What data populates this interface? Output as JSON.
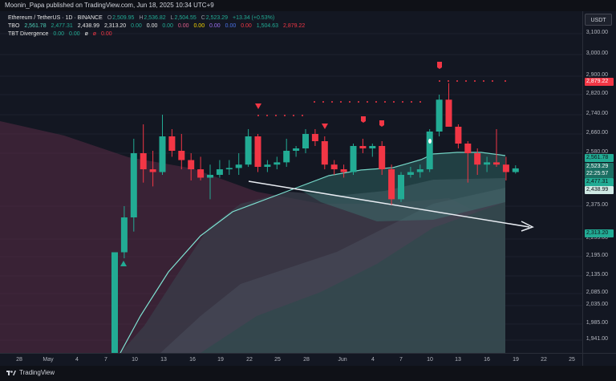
{
  "topbar": {
    "text": "Moonin_Papa published on TradingView.com, Jun 18, 2025 10:34 UTC+9"
  },
  "legend": {
    "symbol_line": {
      "symbol": "Ethereum / TetherUS · 1D · BINANCE",
      "o_label": "O",
      "o": "2,509.95",
      "h_label": "H",
      "h": "2,536.82",
      "l_label": "L",
      "l": "2,504.55",
      "c_label": "C",
      "c": "2,523.29",
      "change": "+13.34 (+0.53%)"
    },
    "tbo_line": {
      "name": "TBO",
      "values": [
        "2,561.78",
        "2,477.31",
        "2,438.99",
        "2,313.20",
        "0.00",
        "0.00",
        "0.00",
        "0.00",
        "0.00",
        "0.00",
        "0.00",
        "0.00",
        "1,504.63",
        "2,879.22"
      ]
    },
    "tbt_line": {
      "name": "TBT Divergence",
      "values": [
        "0.00",
        "0.00",
        "ø",
        "ø",
        "0.00"
      ]
    }
  },
  "currency_button": "USDT",
  "y_axis": {
    "ticks": [
      "3,100.00",
      "3,000.00",
      "2,900.00",
      "2,820.00",
      "2,740.00",
      "2,660.00",
      "2,580.00",
      "2,375.00",
      "2,255.00",
      "2,195.00",
      "2,135.00",
      "2,085.00",
      "2,035.00",
      "1,985.00",
      "1,941.00"
    ]
  },
  "price_tags": [
    {
      "value": "2,879.22",
      "color": "#f23645"
    },
    {
      "value": "2,561.78",
      "color": "#22ab94"
    },
    {
      "value": "2,523.29",
      "color": "#22ab94"
    },
    {
      "value": "22:25:57",
      "color": "#22ab94"
    },
    {
      "value": "2,477.31",
      "color": "#22ab94"
    },
    {
      "value": "2,438.99",
      "color": "#22ab94"
    },
    {
      "value": "2,313.20",
      "color": "#22ab94"
    }
  ],
  "x_axis": {
    "ticks": [
      "28",
      "May",
      "4",
      "7",
      "10",
      "13",
      "16",
      "19",
      "22",
      "25",
      "28",
      "Jun",
      "4",
      "7",
      "10",
      "13",
      "16",
      "19",
      "22",
      "25"
    ]
  },
  "footer": {
    "brand": "TradingView"
  },
  "colors": {
    "up": "#22ab94",
    "down": "#f23645",
    "bg": "#131722",
    "line": "#7fe3d3"
  },
  "chart_data": {
    "type": "candlestick",
    "symbol": "Ethereum / TetherUS",
    "interval": "1D",
    "exchange": "BINANCE",
    "candles": [
      {
        "o": 1780,
        "h": 2210,
        "l": 1780,
        "c": 2210
      },
      {
        "o": 2210,
        "h": 2375,
        "l": 2190,
        "c": 2345
      },
      {
        "o": 2345,
        "h": 2640,
        "l": 2300,
        "c": 2580
      },
      {
        "o": 2580,
        "h": 2700,
        "l": 2470,
        "c": 2520
      },
      {
        "o": 2520,
        "h": 2590,
        "l": 2450,
        "c": 2510
      },
      {
        "o": 2510,
        "h": 2740,
        "l": 2500,
        "c": 2650
      },
      {
        "o": 2650,
        "h": 2680,
        "l": 2570,
        "c": 2590
      },
      {
        "o": 2590,
        "h": 2660,
        "l": 2520,
        "c": 2560
      },
      {
        "o": 2560,
        "h": 2580,
        "l": 2480,
        "c": 2520
      },
      {
        "o": 2520,
        "h": 2570,
        "l": 2480,
        "c": 2490
      },
      {
        "o": 2490,
        "h": 2540,
        "l": 2400,
        "c": 2500
      },
      {
        "o": 2500,
        "h": 2560,
        "l": 2490,
        "c": 2520
      },
      {
        "o": 2520,
        "h": 2560,
        "l": 2500,
        "c": 2525
      },
      {
        "o": 2525,
        "h": 2580,
        "l": 2500,
        "c": 2540
      },
      {
        "o": 2540,
        "h": 2680,
        "l": 2530,
        "c": 2650
      },
      {
        "o": 2650,
        "h": 2660,
        "l": 2510,
        "c": 2530
      },
      {
        "o": 2530,
        "h": 2560,
        "l": 2510,
        "c": 2540
      },
      {
        "o": 2540,
        "h": 2570,
        "l": 2520,
        "c": 2550
      },
      {
        "o": 2550,
        "h": 2640,
        "l": 2530,
        "c": 2590
      },
      {
        "o": 2590,
        "h": 2610,
        "l": 2570,
        "c": 2600
      },
      {
        "o": 2600,
        "h": 2680,
        "l": 2580,
        "c": 2660
      },
      {
        "o": 2660,
        "h": 2680,
        "l": 2610,
        "c": 2630
      },
      {
        "o": 2630,
        "h": 2650,
        "l": 2520,
        "c": 2540
      },
      {
        "o": 2540,
        "h": 2560,
        "l": 2500,
        "c": 2520
      },
      {
        "o": 2520,
        "h": 2540,
        "l": 2490,
        "c": 2510
      },
      {
        "o": 2510,
        "h": 2620,
        "l": 2500,
        "c": 2610
      },
      {
        "o": 2610,
        "h": 2640,
        "l": 2580,
        "c": 2600
      },
      {
        "o": 2600,
        "h": 2620,
        "l": 2570,
        "c": 2610
      },
      {
        "o": 2610,
        "h": 2630,
        "l": 2500,
        "c": 2520
      },
      {
        "o": 2520,
        "h": 2540,
        "l": 2380,
        "c": 2400
      },
      {
        "o": 2400,
        "h": 2510,
        "l": 2390,
        "c": 2500
      },
      {
        "o": 2500,
        "h": 2530,
        "l": 2490,
        "c": 2510
      },
      {
        "o": 2510,
        "h": 2540,
        "l": 2490,
        "c": 2520
      },
      {
        "o": 2520,
        "h": 2680,
        "l": 2510,
        "c": 2670
      },
      {
        "o": 2670,
        "h": 2820,
        "l": 2650,
        "c": 2800
      },
      {
        "o": 2800,
        "h": 2870,
        "l": 2690,
        "c": 2690
      },
      {
        "o": 2690,
        "h": 2700,
        "l": 2600,
        "c": 2620
      },
      {
        "o": 2620,
        "h": 2630,
        "l": 2470,
        "c": 2580
      },
      {
        "o": 2580,
        "h": 2600,
        "l": 2500,
        "c": 2540
      },
      {
        "o": 2540,
        "h": 2570,
        "l": 2510,
        "c": 2550
      },
      {
        "o": 2550,
        "h": 2680,
        "l": 2530,
        "c": 2540
      },
      {
        "o": 2540,
        "h": 2570,
        "l": 2480,
        "c": 2510
      },
      {
        "o": 2509.95,
        "h": 2536.82,
        "l": 2504.55,
        "c": 2523.29
      }
    ]
  }
}
